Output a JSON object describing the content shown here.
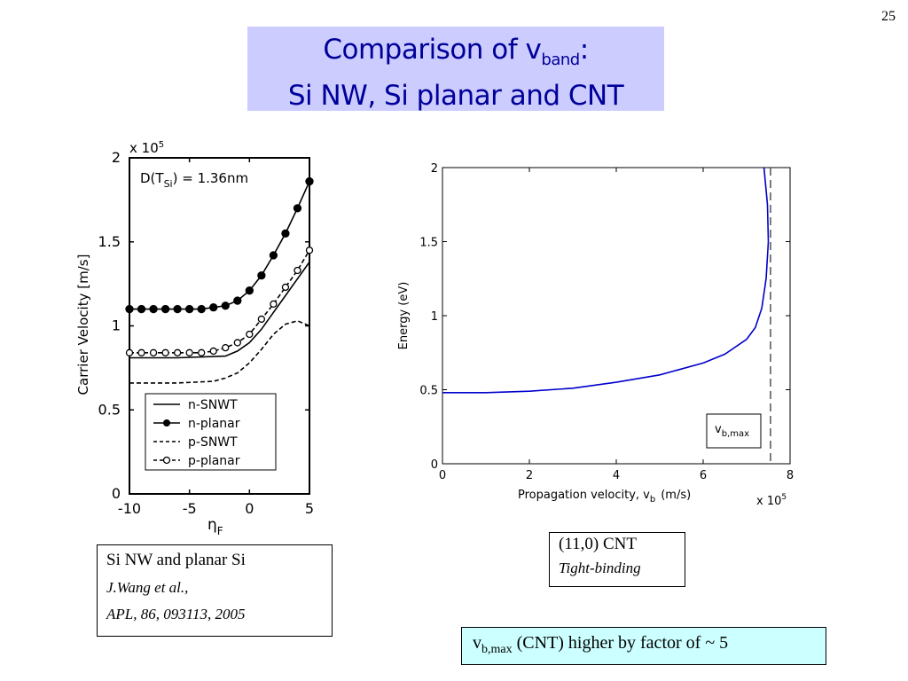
{
  "slide_number": "25",
  "title": {
    "line1_prefix": "Comparison of v",
    "line1_sub": "band",
    "line1_suffix": ":",
    "line2": "Si NW, Si planar and CNT"
  },
  "left_chart": {
    "exponent_label": "x 10",
    "exponent_sup": "5",
    "annotation": "D(T",
    "annotation_sub": "Si",
    "annotation_suffix": ") = 1.36nm",
    "ylabel": "Carrier Velocity  [m/s]",
    "xlabel": "η",
    "xlabel_sub": "F",
    "yticks": [
      "0",
      "0.5",
      "1",
      "1.5",
      "2"
    ],
    "xticks": [
      "-10",
      "-5",
      "0",
      "5"
    ],
    "legend": [
      "n-SNWT",
      "n-planar",
      "p-SNWT",
      "p-planar"
    ]
  },
  "right_chart": {
    "ylabel": "Energy (eV)",
    "xlabel": "Propagation velocity, v",
    "xlabel_sub": "b",
    "xlabel_unit": "(m/s)",
    "exponent_label": "x 10",
    "exponent_sup": "5",
    "yticks": [
      "0",
      "0.5",
      "1",
      "1.5",
      "2"
    ],
    "xticks": [
      "0",
      "2",
      "4",
      "6",
      "8"
    ],
    "annotation": "v",
    "annotation_sub": "b,max"
  },
  "chart_data": [
    {
      "type": "line",
      "xlim": [
        -10,
        5
      ],
      "ylim": [
        0,
        2
      ],
      "y_scale_note": "x 10^5",
      "series": [
        {
          "name": "n-SNWT",
          "style": "solid",
          "x": [
            -10,
            -6,
            -2,
            -1,
            0,
            1,
            2,
            3,
            4,
            5
          ],
          "y": [
            0.81,
            0.81,
            0.82,
            0.85,
            0.9,
            0.98,
            1.08,
            1.18,
            1.28,
            1.38
          ]
        },
        {
          "name": "n-planar",
          "style": "solid-dots",
          "x": [
            -10,
            -9,
            -8,
            -7,
            -6,
            -5,
            -4,
            -3,
            -2,
            -1,
            0,
            1,
            2,
            3,
            4,
            5
          ],
          "y": [
            1.1,
            1.1,
            1.1,
            1.1,
            1.1,
            1.1,
            1.1,
            1.11,
            1.12,
            1.15,
            1.21,
            1.3,
            1.42,
            1.55,
            1.7,
            1.86
          ]
        },
        {
          "name": "p-SNWT",
          "style": "dashed",
          "x": [
            -10,
            -6,
            -3,
            -2,
            -1,
            0,
            1,
            2,
            3,
            4,
            5
          ],
          "y": [
            0.66,
            0.66,
            0.67,
            0.69,
            0.72,
            0.78,
            0.86,
            0.95,
            1.01,
            1.03,
            1.0
          ]
        },
        {
          "name": "p-planar",
          "style": "dashed-circles",
          "x": [
            -10,
            -9,
            -8,
            -7,
            -6,
            -5,
            -4,
            -3,
            -2,
            -1,
            0,
            1,
            2,
            3,
            4,
            5
          ],
          "y": [
            0.84,
            0.84,
            0.84,
            0.84,
            0.84,
            0.84,
            0.84,
            0.85,
            0.87,
            0.9,
            0.95,
            1.04,
            1.13,
            1.23,
            1.33,
            1.45
          ]
        }
      ]
    },
    {
      "type": "line",
      "xlim": [
        0,
        8
      ],
      "ylim": [
        0,
        2
      ],
      "x_scale_note": "x 10^5",
      "series": [
        {
          "style": "solid-blue",
          "x": [
            0,
            1,
            2,
            3,
            4,
            5,
            6,
            6.5,
            7,
            7.2,
            7.35,
            7.45,
            7.5,
            7.48,
            7.4
          ],
          "y": [
            0.48,
            0.48,
            0.49,
            0.51,
            0.55,
            0.6,
            0.68,
            0.74,
            0.84,
            0.92,
            1.05,
            1.25,
            1.5,
            1.75,
            2.0
          ]
        }
      ],
      "vline_x": 7.55
    }
  ],
  "captions": {
    "left": {
      "line1": "Si NW and planar Si",
      "line2": "J.Wang et al.,",
      "line3": "APL, 86, 093113, 2005"
    },
    "right": {
      "line1": "(11,0) CNT",
      "line2": "Tight-binding"
    },
    "bottom": {
      "prefix": "v",
      "sub": "b,max",
      "suffix": " (CNT) higher by factor of ~ 5"
    }
  }
}
